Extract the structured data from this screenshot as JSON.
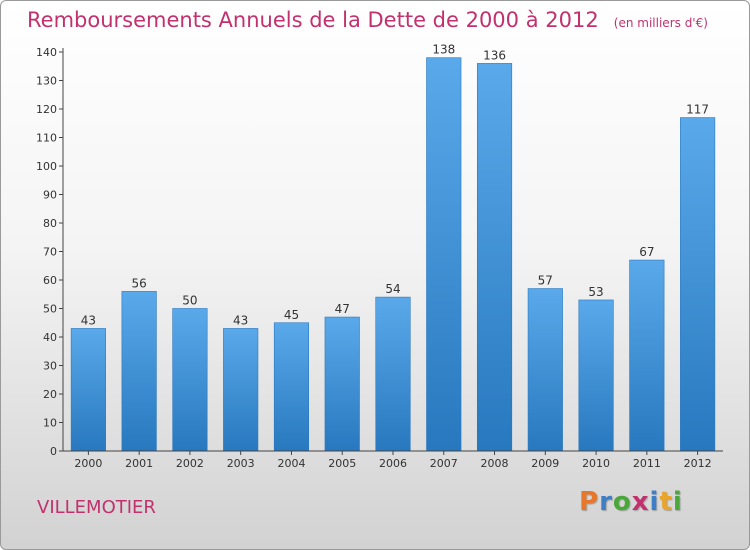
{
  "title": "Remboursements Annuels de la Dette de 2000 à 2012",
  "unit": "(en milliers d'€)",
  "commune": "VILLEMOTIER",
  "logo": {
    "letters": [
      "P",
      "r",
      "o",
      "x",
      "i",
      "t",
      "i"
    ],
    "colors": [
      "#e8772a",
      "#3d7fc6",
      "#4aa83a",
      "#c2316e",
      "#3d7fc6",
      "#e8a52a",
      "#4aa83a"
    ]
  },
  "chart_data": {
    "type": "bar",
    "categories": [
      "2000",
      "2001",
      "2002",
      "2003",
      "2004",
      "2005",
      "2006",
      "2007",
      "2008",
      "2009",
      "2010",
      "2011",
      "2012"
    ],
    "values": [
      43,
      56,
      50,
      43,
      45,
      47,
      54,
      138,
      136,
      57,
      53,
      67,
      117
    ],
    "data_labels": [
      "43",
      "56",
      "50",
      "43",
      "45",
      "47",
      "54",
      "138",
      "136",
      "57",
      "53",
      "67",
      "117"
    ],
    "ylim": [
      0,
      140
    ],
    "yticks": [
      0,
      10,
      20,
      30,
      40,
      50,
      60,
      70,
      80,
      90,
      100,
      110,
      120,
      130,
      140
    ],
    "ytick_labels": [
      "0",
      "10",
      "20",
      "30",
      "40",
      "50",
      "60",
      "70",
      "80",
      "90",
      "100",
      "110",
      "120",
      "130",
      "140"
    ],
    "grid": false,
    "bar_color": "#4d9de0"
  }
}
